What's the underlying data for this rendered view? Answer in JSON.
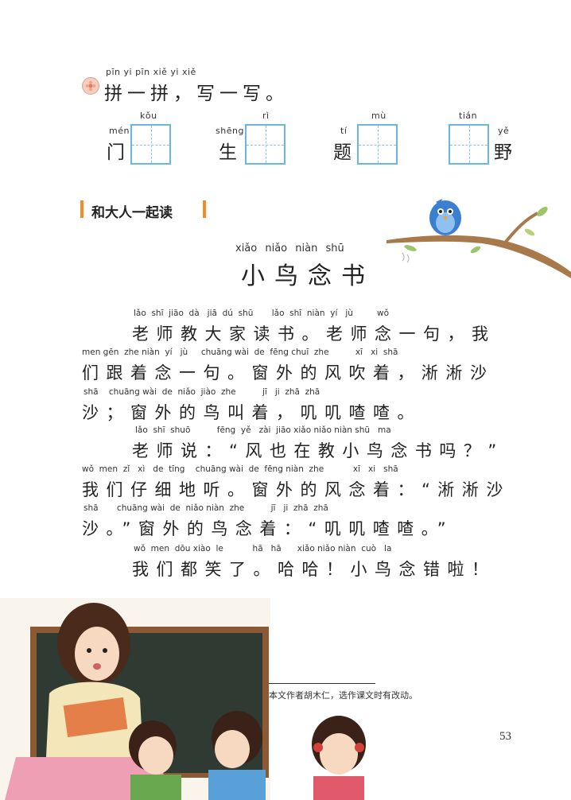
{
  "exercise": {
    "pinyin": "pīn  yi  pīn       xiě  yi  xiě",
    "text": "拼一拼，写一写。",
    "pairs": [
      {
        "left_py": "mén",
        "left_char": "门",
        "box_py": "kǒu"
      },
      {
        "left_py": "shēng",
        "left_char": "生",
        "box_py": "rì"
      },
      {
        "left_py": "tí",
        "left_char": "题",
        "box_py": "mù"
      },
      {
        "box_py": "tián",
        "right_py": "yě",
        "right_char": "野"
      }
    ]
  },
  "section": {
    "title": "和大人一起读"
  },
  "story": {
    "title_pinyin": "xiǎo niǎo niàn shū",
    "title": "小鸟念书",
    "lines": [
      {
        "p": "lǎo  shī  jiāo  dà   jiā  dú  shū       lǎo  shī  niàn  yí   jù         wǒ",
        "t": "老师教大家读书。老师念一句，我"
      },
      {
        "p": "men gēn  zhe niàn  yí   jù     chuāng wài  de  fēng chuī  zhe          xī   xi  shā",
        "t": "们跟着念一句。窗外的风吹着，淅淅沙"
      },
      {
        "p": "shā    chuāng wài  de  niǎo  jiào  zhe          jī   ji  zhā  zhā",
        "t": "沙；窗外的鸟叫着，叽叽喳喳。"
      },
      {
        "p": "lǎo  shī  shuō          fēng  yě   zài  jiāo xiǎo niǎo niàn shū   ma",
        "t": "老师说：“风也在教小鸟念书吗？”"
      },
      {
        "p": "wǒ  men  zǐ   xì   de  tīng    chuāng wài  de  fēng niàn  zhe           xī   xi   shā",
        "t": "我们仔细地听。窗外的风念着：“淅淅沙"
      },
      {
        "p": "shā       chuāng wài  de  niǎo niàn  zhe          jī   ji  zhā  zhā",
        "t": "沙。”窗外的鸟念着：“叽叽喳喳。”"
      },
      {
        "p": "wǒ  men  dōu xiào  le           hā   hā      xiǎo niǎo niàn  cuò   la",
        "t": "我们都笑了。哈哈！小鸟念错啦！"
      }
    ]
  },
  "footnote": "本文作者胡木仁，选作课文时有改动。",
  "page_number": "53",
  "colors": {
    "grid": "#6cb7dd",
    "section_bar": "#f28c28",
    "bird": "#3a7fd0",
    "blackboard": "#2f3a33"
  }
}
